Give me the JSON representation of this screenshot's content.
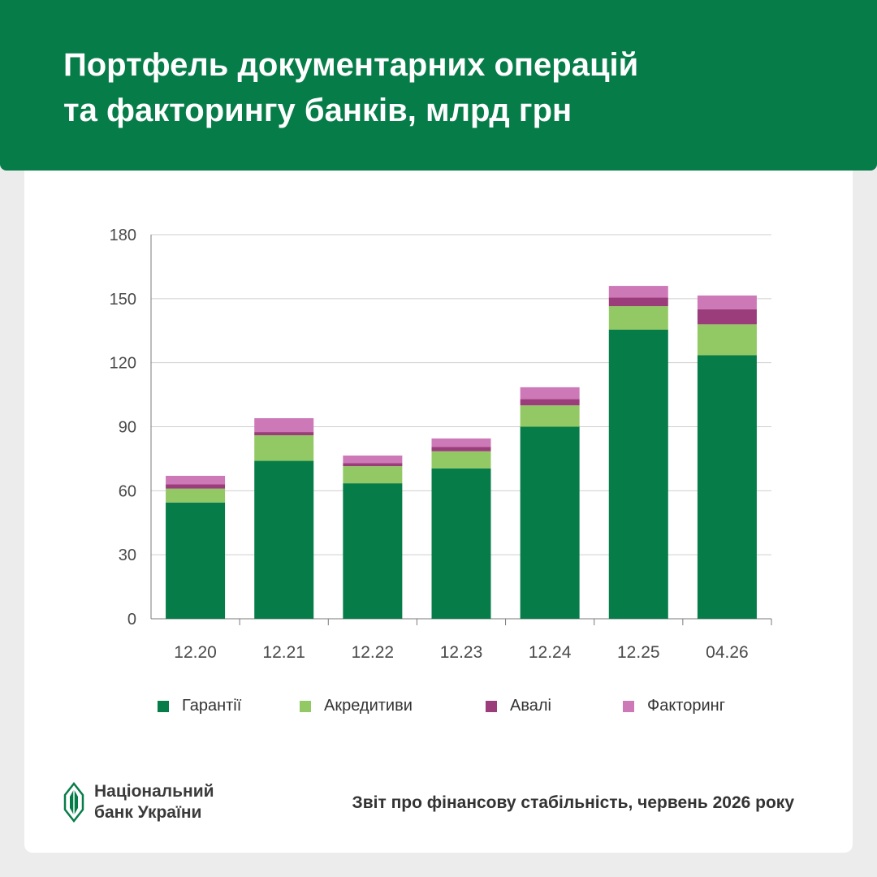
{
  "header": {
    "title_line1": "Портфель документарних операцій",
    "title_line2": "та факторингу банків, млрд грн"
  },
  "colors": {
    "header_bg": "#067c48",
    "guarantees": "#067c48",
    "letters_of_credit": "#93c964",
    "avals": "#9b3d7a",
    "factoring": "#cd79b8",
    "gridline": "#cfcfcf",
    "axis": "#7a7a7a"
  },
  "chart_data": {
    "type": "bar",
    "stacked": true,
    "categories": [
      "12.20",
      "12.21",
      "12.22",
      "12.23",
      "12.24",
      "12.25",
      "04.26"
    ],
    "series": [
      {
        "name": "Гарантії",
        "values": [
          54.5,
          74,
          63.5,
          70.5,
          90,
          135.5,
          123.5
        ]
      },
      {
        "name": "Акредитиви",
        "values": [
          6.5,
          12,
          8,
          8,
          10,
          11,
          14.5
        ]
      },
      {
        "name": "Авалі",
        "values": [
          2,
          1.5,
          1.5,
          2,
          3,
          4,
          7
        ]
      },
      {
        "name": "Факторинг",
        "values": [
          4,
          6.5,
          3.5,
          4,
          5.5,
          5.5,
          6.5
        ]
      }
    ],
    "ylim": [
      0,
      180
    ],
    "yticks": [
      0,
      30,
      60,
      90,
      120,
      150,
      180
    ],
    "grid": true,
    "legend_position": "bottom"
  },
  "footer": {
    "logo_line1": "Національний",
    "logo_line2": "банк України",
    "source": "Звіт про фінансову стабільність, червень 2026 року"
  }
}
